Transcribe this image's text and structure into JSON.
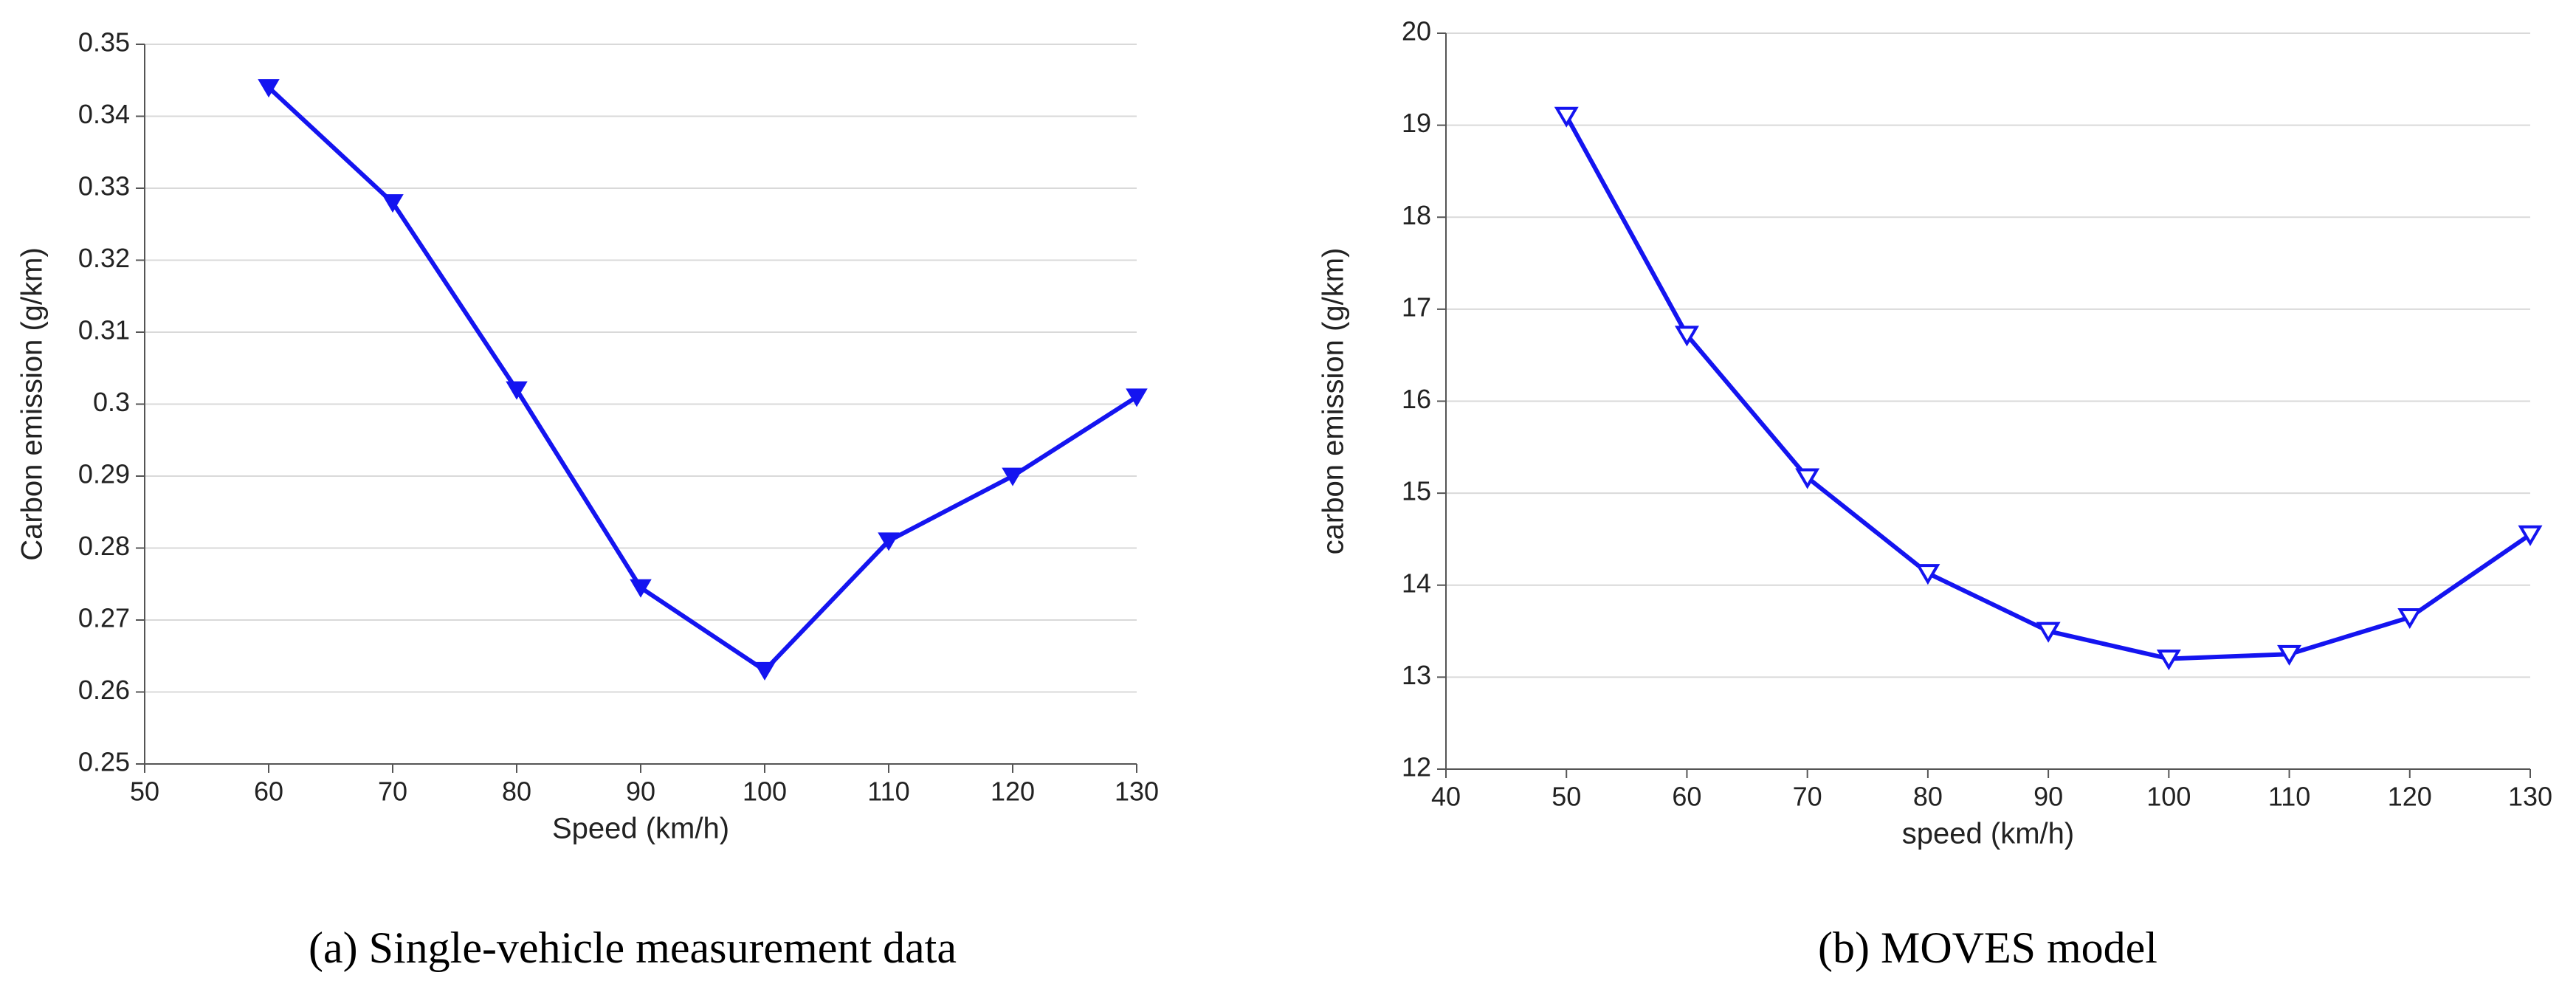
{
  "chart_data": [
    {
      "type": "line",
      "caption": "(a) Single-vehicle measurement data",
      "xlabel": "Speed (km/h)",
      "ylabel": "Carbon emission (g/km)",
      "x": [
        60,
        70,
        80,
        90,
        100,
        110,
        120,
        130
      ],
      "values": [
        0.344,
        0.328,
        0.302,
        0.2745,
        0.263,
        0.281,
        0.29,
        0.301
      ],
      "color": "#1414f0",
      "marker": "filled-triangle-down",
      "xlim": [
        50,
        130
      ],
      "xticks": [
        50,
        60,
        70,
        80,
        90,
        100,
        110,
        120,
        130
      ],
      "ylim": [
        0.25,
        0.35
      ],
      "yticks": [
        0.25,
        0.26,
        0.27,
        0.28,
        0.29,
        0.3,
        0.31,
        0.32,
        0.33,
        0.34,
        0.35
      ],
      "grid": true
    },
    {
      "type": "line",
      "caption": "(b) MOVES model",
      "xlabel": "speed (km/h)",
      "ylabel": "carbon emission (g/km)",
      "x": [
        50,
        60,
        70,
        80,
        90,
        100,
        110,
        120,
        130
      ],
      "values": [
        19.1,
        16.72,
        15.17,
        14.13,
        13.5,
        13.2,
        13.25,
        13.65,
        14.55
      ],
      "color": "#1414f0",
      "marker": "open-triangle-down",
      "xlim": [
        40,
        130
      ],
      "xticks": [
        40,
        50,
        60,
        70,
        80,
        90,
        100,
        110,
        120,
        130
      ],
      "ylim": [
        12,
        20
      ],
      "yticks": [
        12,
        13,
        14,
        15,
        16,
        17,
        18,
        19,
        20
      ],
      "grid": true
    }
  ]
}
